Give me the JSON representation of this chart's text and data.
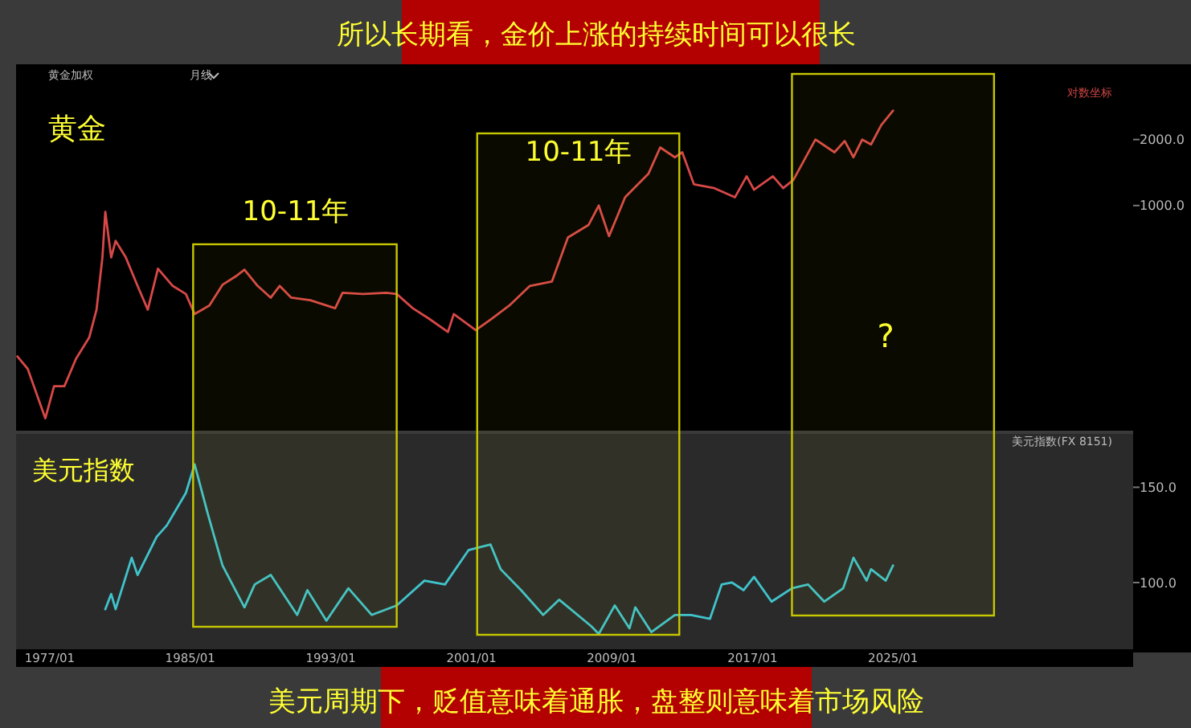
{
  "chart_data": [
    {
      "type": "line",
      "title": "所以长期看，金价上涨的持续时间可以很长",
      "subtitle": "黄金",
      "log": "y",
      "tick_labels": "y",
      "xlim": [
        "1975-02",
        "2038-09"
      ],
      "ylim": [
        94,
        3600
      ],
      "yticks": [
        {
          "value": 1000,
          "label": "1000.0"
        },
        {
          "value": 2000,
          "label": "2000.0"
        }
      ],
      "annotations": [
        "黄金加权",
        "月线",
        "对数坐标",
        "10-11年",
        "10-11年",
        "?"
      ],
      "bands": [
        {
          "axis": "x",
          "from": "1985-03",
          "to": "1996-10",
          "color": "#c8c800"
        },
        {
          "axis": "x",
          "from": "2001-05",
          "to": "2012-11",
          "color": "#c8c800"
        },
        {
          "axis": "x",
          "from": "2019-04",
          "to": "2030-10",
          "color": "#c8c800"
        }
      ],
      "series": [
        {
          "color": "#d84848",
          "x": [
            "1975-03",
            "1975-10",
            "1976-03",
            "1976-10",
            "1977-04",
            "1977-11",
            "1978-07",
            "1979-04",
            "1979-09",
            "1980-01",
            "1980-03",
            "1980-07",
            "1980-10",
            "1981-05",
            "1982-01",
            "1982-08",
            "1983-03",
            "1984-01",
            "1984-10",
            "1985-04",
            "1986-02",
            "1986-11",
            "1987-08",
            "1988-02",
            "1988-11",
            "1989-08",
            "1990-02",
            "1990-10",
            "1991-11",
            "1993-04",
            "1993-09",
            "1994-11",
            "1996-03",
            "1996-10",
            "1997-09",
            "1998-08",
            "1999-09",
            "2000-01",
            "2001-04",
            "2002-03",
            "2003-03",
            "2004-05",
            "2005-08",
            "2006-07",
            "2007-09",
            "2008-04",
            "2008-11",
            "2009-10",
            "2011-02",
            "2011-10",
            "2012-08",
            "2013-01",
            "2013-09",
            "2014-11",
            "2016-01",
            "2016-09",
            "2017-02",
            "2018-03",
            "2018-10",
            "2019-05",
            "2020-08",
            "2021-09",
            "2022-04",
            "2022-10",
            "2023-04",
            "2023-10",
            "2024-05",
            "2025-01"
          ],
          "values": [
            205,
            180,
            145,
            107,
            150,
            150,
            200,
            250,
            335,
            580,
            935,
            580,
            690,
            580,
            430,
            335,
            515,
            430,
            395,
            320,
            350,
            435,
            475,
            510,
            430,
            380,
            430,
            380,
            370,
            340,
            400,
            395,
            400,
            395,
            340,
            305,
            265,
            320,
            270,
            305,
            350,
            430,
            450,
            715,
            815,
            1000,
            725,
            1090,
            1400,
            1840,
            1660,
            1750,
            1250,
            1200,
            1090,
            1360,
            1180,
            1360,
            1200,
            1310,
            2000,
            1750,
            1970,
            1660,
            2000,
            1900,
            2330,
            2710
          ]
        }
      ]
    },
    {
      "type": "line",
      "title": "美元指数",
      "xlim": [
        "1975-02",
        "2038-09"
      ],
      "ylim": [
        65,
        178
      ],
      "xticks": [
        {
          "value": "1977-01",
          "label": "1977/01"
        },
        {
          "value": "1985-01",
          "label": "1985/01"
        },
        {
          "value": "1993-01",
          "label": "1993/01"
        },
        {
          "value": "2001-01",
          "label": "2001/01"
        },
        {
          "value": "2009-01",
          "label": "2009/01"
        },
        {
          "value": "2017-01",
          "label": "2017/01"
        },
        {
          "value": "2025-01",
          "label": "2025/01"
        }
      ],
      "yticks": [
        {
          "value": 100,
          "label": "100.0"
        },
        {
          "value": 150,
          "label": "150.0"
        }
      ],
      "annotations": [
        "美元指数(FX 8151)",
        "美元周期下，贬值意味着通胀，盘整则意味着市场风险"
      ],
      "series": [
        {
          "color": "#40c4cc",
          "x": [
            "1980-03",
            "1980-07",
            "1980-10",
            "1981-09",
            "1982-01",
            "1983-02",
            "1983-09",
            "1984-10",
            "1985-04",
            "1986-01",
            "1986-11",
            "1988-02",
            "1988-09",
            "1989-08",
            "1991-02",
            "1991-09",
            "1992-10",
            "1994-01",
            "1995-05",
            "1996-10",
            "1998-05",
            "1999-07",
            "2000-11",
            "2002-02",
            "2002-09",
            "2003-11",
            "2005-02",
            "2006-01",
            "2007-11",
            "2008-04",
            "2009-03",
            "2010-01",
            "2010-05",
            "2011-04",
            "2012-08",
            "2013-07",
            "2014-08",
            "2015-04",
            "2015-11",
            "2016-07",
            "2017-02",
            "2018-02",
            "2019-04",
            "2020-03",
            "2021-02",
            "2022-03",
            "2022-10",
            "2023-07",
            "2023-10",
            "2024-08",
            "2025-01"
          ],
          "values": [
            86,
            94,
            86,
            113,
            104,
            124,
            130,
            147,
            162,
            136,
            109,
            87,
            99,
            104,
            83,
            96,
            80,
            97,
            83,
            88,
            101,
            99,
            117,
            120,
            107,
            96,
            83,
            91,
            77,
            73,
            88,
            76,
            87,
            74,
            83,
            83,
            81,
            99,
            100,
            96,
            103,
            90,
            97,
            99,
            90,
            97,
            113,
            101,
            107,
            101,
            109
          ]
        }
      ]
    }
  ]
}
